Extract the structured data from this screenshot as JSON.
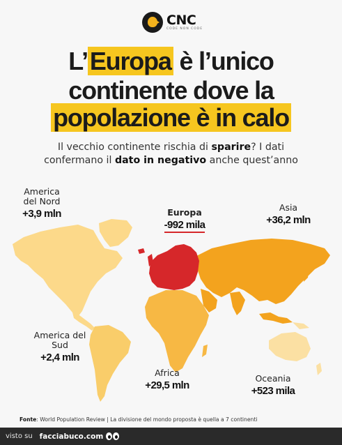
{
  "logo": {
    "name": "CNC",
    "tagline": "CODE NON CODE"
  },
  "headline": {
    "line1_pre": "L’",
    "line1_highlight": "Europa",
    "line1_post": " è l’unico",
    "line2": "continente dove la",
    "line3_highlight": "popolazione è in calo"
  },
  "subtitle": {
    "line1_a": "Il vecchio continente rischia di ",
    "line1_bold": "sparire",
    "line1_b": "? I dati",
    "line2_a": "confermano il ",
    "line2_bold": "dato in negativo",
    "line2_b": " anche quest’anno"
  },
  "regions": {
    "north_america": {
      "name": "America del Nord",
      "value": "+3,9 mln"
    },
    "europe": {
      "name": "Europa",
      "value": "-992 mila"
    },
    "asia": {
      "name": "Asia",
      "value": "+36,2 mln"
    },
    "south_america": {
      "name": "America del Sud",
      "value": "+2,4 mln"
    },
    "africa": {
      "name": "Africa",
      "value": "+29,5 mln"
    },
    "oceania": {
      "name": "Oceania",
      "value": "+523 mila"
    }
  },
  "source": {
    "label": "Fonte",
    "text": ": World Population Review | La divisione del mondo proposta è quella a 7 continenti"
  },
  "footer": {
    "visto": "visto su",
    "site": "facciabuco.com"
  },
  "colors": {
    "highlight": "#f6c61f",
    "north_america": "#fcd98a",
    "south_america": "#f9cd6a",
    "africa": "#f7b844",
    "asia": "#f3a31e",
    "oceania": "#fbe0a3",
    "europe": "#d6272a"
  }
}
